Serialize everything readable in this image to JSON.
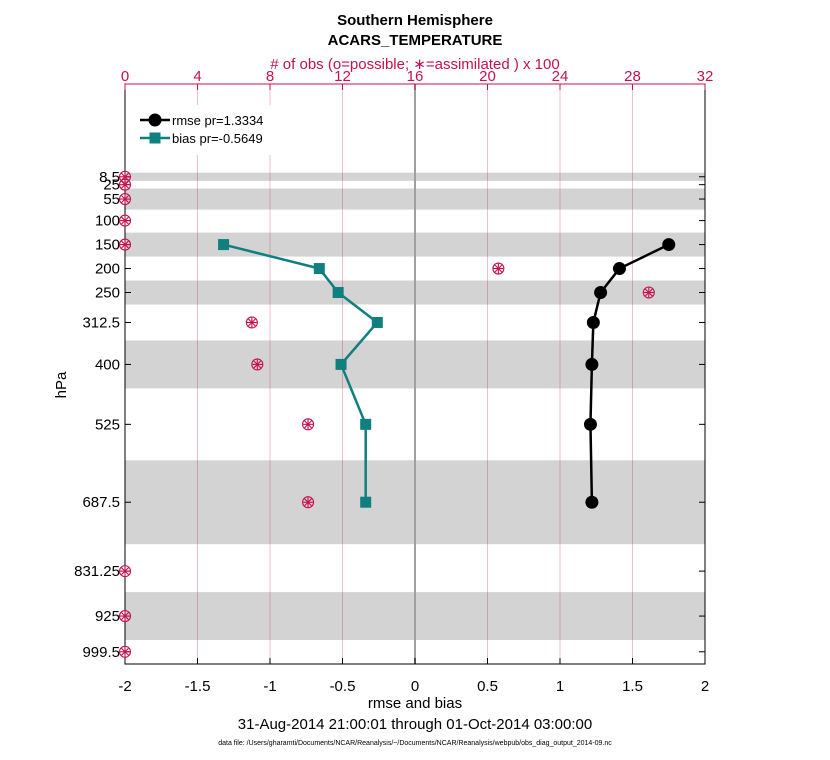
{
  "chart_data": {
    "type": "line",
    "title": "Southern Hemisphere",
    "subtitle": "ACARS_TEMPERATURE",
    "xlabel": "rmse and bias",
    "ylabel": "hPa",
    "top_xlabel": "# of obs (o=possible; ∗=assimilated ) x 100",
    "date_range": "31-Aug-2014 21:00:01 through 01-Oct-2014 03:00:00",
    "footnote": "data file: /Users/gharamti/Documents/NCAR/Reanalysis/~/Documents/NCAR/Reanalysis/webpub/obs_diag_output_2014-09.nc",
    "xlim": [
      -2,
      2
    ],
    "xticks": [
      -2,
      -1.5,
      -1,
      -0.5,
      0,
      0.5,
      1,
      1.5,
      2
    ],
    "xtick_labels": [
      "-2",
      "-1.5",
      "-1",
      "-0.5",
      "0",
      "0.5",
      "1",
      "1.5",
      "2"
    ],
    "top_xlim": [
      0,
      32
    ],
    "top_xticks": [
      0,
      4,
      8,
      12,
      16,
      20,
      24,
      28,
      32
    ],
    "top_xtick_labels": [
      "0",
      "4",
      "8",
      "12",
      "16",
      "20",
      "24",
      "28",
      "32"
    ],
    "ylim": [
      1025,
      -185
    ],
    "levels": [
      8.5,
      25,
      55,
      100,
      150,
      200,
      250,
      312.5,
      400,
      525,
      687.5,
      831.25,
      925,
      999.5
    ],
    "level_labels": [
      "8.5",
      "25",
      "55",
      "100",
      "150",
      "200",
      "250",
      "312.5",
      "400",
      "525",
      "687.5",
      "831.25",
      "925",
      "999.5"
    ],
    "shaded_bands": [
      [
        0,
        17
      ],
      [
        33,
        77
      ],
      [
        125,
        175
      ],
      [
        225,
        275
      ],
      [
        350,
        450
      ],
      [
        600,
        775
      ],
      [
        875,
        975
      ]
    ],
    "series": [
      {
        "name": "rmse pr=1.3334",
        "color": "#000000",
        "marker": "circle",
        "levels": [
          150,
          200,
          250,
          312.5,
          400,
          525,
          687.5
        ],
        "values": [
          1.75,
          1.41,
          1.28,
          1.23,
          1.22,
          1.21,
          1.22
        ]
      },
      {
        "name": "bias pr=-0.5649",
        "color": "#0f7f80",
        "marker": "square",
        "levels": [
          150,
          200,
          250,
          312.5,
          400,
          525,
          687.5
        ],
        "values": [
          -1.32,
          -0.66,
          -0.53,
          -0.26,
          -0.51,
          -0.34,
          -0.34
        ]
      }
    ],
    "obs_counts": {
      "levels": [
        8.5,
        25,
        55,
        100,
        150,
        200,
        250,
        312.5,
        400,
        525,
        687.5,
        831.25,
        925,
        999.5
      ],
      "possible": [
        0,
        0,
        0,
        0,
        0,
        20.6,
        28.9,
        7,
        7.3,
        10.1,
        10.1,
        0,
        0,
        0
      ],
      "assimilated": [
        0,
        0,
        0,
        0,
        0,
        20.6,
        28.9,
        7,
        7.3,
        10.1,
        10.1,
        0,
        0,
        0
      ]
    }
  },
  "colors": {
    "obs": "#c8104e",
    "band": "#d3d3d3",
    "grid": "#c8104e",
    "zero_line": "#a0a0a0"
  }
}
